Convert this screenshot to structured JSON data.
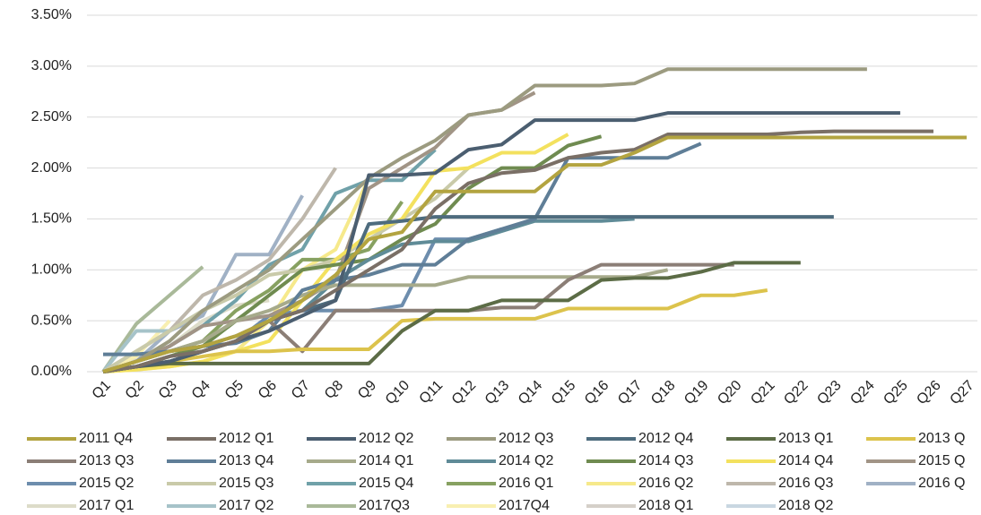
{
  "chart_data": {
    "type": "line",
    "categories": [
      "Q1",
      "Q2",
      "Q3",
      "Q4",
      "Q5",
      "Q6",
      "Q7",
      "Q8",
      "Q9",
      "Q10",
      "Q11",
      "Q12",
      "Q13",
      "Q14",
      "Q15",
      "Q16",
      "Q17",
      "Q18",
      "Q19",
      "Q20",
      "Q21",
      "Q22",
      "Q23",
      "Q24",
      "Q25",
      "Q26",
      "Q27"
    ],
    "ylim": [
      0,
      3.5
    ],
    "yticks": [
      {
        "value": 0,
        "label": "0.00%"
      },
      {
        "value": 0.5,
        "label": "0.50%"
      },
      {
        "value": 1,
        "label": "1.00%"
      },
      {
        "value": 1.5,
        "label": "1.50%"
      },
      {
        "value": 2,
        "label": "2.00%"
      },
      {
        "value": 2.5,
        "label": "2.50%"
      },
      {
        "value": 3,
        "label": "3.00%"
      },
      {
        "value": 3.5,
        "label": "3.50%"
      }
    ],
    "grid": true,
    "legend": "bottom",
    "series": [
      {
        "name": "2011 Q4",
        "color": "#b3a440",
        "values": [
          0,
          0.1,
          0.2,
          0.25,
          0.35,
          0.5,
          0.7,
          0.95,
          1.3,
          1.37,
          1.77,
          1.77,
          1.77,
          1.77,
          2.03,
          2.03,
          2.15,
          2.3,
          2.3,
          2.3,
          2.3,
          2.3,
          2.3,
          2.3,
          2.3,
          2.3,
          2.3
        ]
      },
      {
        "name": "2012 Q1",
        "color": "#7a6f66",
        "values": [
          0,
          0.05,
          0.15,
          0.2,
          0.3,
          0.5,
          0.6,
          0.8,
          1.0,
          1.2,
          1.6,
          1.85,
          1.95,
          1.98,
          2.1,
          2.15,
          2.18,
          2.33,
          2.33,
          2.33,
          2.33,
          2.35,
          2.36,
          2.36,
          2.36,
          2.36,
          null
        ]
      },
      {
        "name": "2012 Q2",
        "color": "#4b5e70",
        "values": [
          0,
          0.05,
          0.1,
          0.2,
          0.3,
          0.4,
          0.55,
          0.7,
          1.93,
          1.93,
          1.95,
          2.18,
          2.23,
          2.47,
          2.47,
          2.47,
          2.47,
          2.54,
          2.54,
          2.54,
          2.54,
          2.54,
          2.54,
          2.54,
          2.54,
          null,
          null
        ]
      },
      {
        "name": "2012 Q3",
        "color": "#9c9b80",
        "values": [
          0,
          0.1,
          0.3,
          0.6,
          0.8,
          1.0,
          1.3,
          1.6,
          1.9,
          2.1,
          2.27,
          2.52,
          2.57,
          2.81,
          2.81,
          2.81,
          2.83,
          2.97,
          2.97,
          2.97,
          2.97,
          2.97,
          2.97,
          2.97,
          null,
          null,
          null
        ]
      },
      {
        "name": "2012 Q4",
        "color": "#4e6c7e",
        "values": [
          0,
          0.05,
          0.1,
          0.2,
          0.3,
          0.5,
          0.6,
          0.7,
          1.45,
          1.48,
          1.52,
          1.52,
          1.52,
          1.52,
          1.52,
          1.52,
          1.52,
          1.52,
          1.52,
          1.52,
          1.52,
          1.52,
          1.52,
          null,
          null,
          null,
          null
        ]
      },
      {
        "name": "2013 Q1",
        "color": "#5c6c46",
        "values": [
          0,
          0.05,
          0.08,
          0.08,
          0.08,
          0.08,
          0.08,
          0.08,
          0.08,
          0.4,
          0.6,
          0.6,
          0.7,
          0.7,
          0.7,
          0.9,
          0.92,
          0.92,
          0.98,
          1.07,
          1.07,
          1.07,
          null,
          null,
          null,
          null,
          null
        ]
      },
      {
        "name": "2013 Q",
        "color": "#dcc34c",
        "values": [
          0,
          0.05,
          0.1,
          0.15,
          0.2,
          0.2,
          0.22,
          0.22,
          0.22,
          0.5,
          0.52,
          0.52,
          0.52,
          0.52,
          0.62,
          0.62,
          0.62,
          0.62,
          0.75,
          0.75,
          0.8,
          null,
          null,
          null,
          null,
          null,
          null
        ]
      },
      {
        "name": "2013 Q3",
        "color": "#8b7e76",
        "values": [
          0,
          0.1,
          0.2,
          0.25,
          0.35,
          0.5,
          0.2,
          0.6,
          0.6,
          0.6,
          0.6,
          0.6,
          0.63,
          0.63,
          0.9,
          1.05,
          1.05,
          1.05,
          1.05,
          1.05,
          null,
          null,
          null,
          null,
          null,
          null,
          null
        ]
      },
      {
        "name": "2013 Q4",
        "color": "#5f7e97",
        "values": [
          0.17,
          0.17,
          0.2,
          0.25,
          0.28,
          0.4,
          0.8,
          0.9,
          0.95,
          1.05,
          1.05,
          1.3,
          1.4,
          1.5,
          2.1,
          2.1,
          2.1,
          2.1,
          2.24,
          null,
          null,
          null,
          null,
          null,
          null,
          null,
          null
        ]
      },
      {
        "name": "2014 Q1",
        "color": "#a6aa8b",
        "values": [
          0,
          0.1,
          0.2,
          0.3,
          0.5,
          0.6,
          0.75,
          0.85,
          0.85,
          0.85,
          0.85,
          0.93,
          0.93,
          0.93,
          0.93,
          0.93,
          0.93,
          1.0,
          null,
          null,
          null,
          null,
          null,
          null,
          null,
          null,
          null
        ]
      },
      {
        "name": "2014 Q2",
        "color": "#5f8b97",
        "values": [
          0,
          0.05,
          0.1,
          0.2,
          0.3,
          0.5,
          0.6,
          0.9,
          1.1,
          1.25,
          1.28,
          1.28,
          1.38,
          1.48,
          1.48,
          1.48,
          1.5,
          null,
          null,
          null,
          null,
          null,
          null,
          null,
          null,
          null,
          null
        ]
      },
      {
        "name": "2014 Q3",
        "color": "#6f8b50",
        "values": [
          0,
          0.05,
          0.15,
          0.25,
          0.5,
          0.75,
          1.0,
          1.05,
          1.1,
          1.3,
          1.45,
          1.8,
          2.0,
          2.0,
          2.22,
          2.31,
          null,
          null,
          null,
          null,
          null,
          null,
          null,
          null,
          null,
          null,
          null
        ]
      },
      {
        "name": "2014 Q4",
        "color": "#f3e15e",
        "values": [
          0,
          0.02,
          0.05,
          0.1,
          0.2,
          0.3,
          0.7,
          1.1,
          1.35,
          1.5,
          1.97,
          2.0,
          2.15,
          2.15,
          2.33,
          null,
          null,
          null,
          null,
          null,
          null,
          null,
          null,
          null,
          null,
          null,
          null
        ]
      },
      {
        "name": "2015 Q",
        "color": "#a19486",
        "values": [
          0,
          0.1,
          0.25,
          0.45,
          0.5,
          0.55,
          0.7,
          0.9,
          1.8,
          2.0,
          2.2,
          2.52,
          2.57,
          2.74,
          null,
          null,
          null,
          null,
          null,
          null,
          null,
          null,
          null,
          null,
          null,
          null,
          null
        ]
      },
      {
        "name": "2015 Q2",
        "color": "#6d8dad",
        "values": [
          0,
          0.05,
          0.1,
          0.2,
          0.3,
          0.55,
          0.6,
          0.6,
          0.6,
          0.65,
          1.3,
          1.3,
          1.4,
          null,
          null,
          null,
          null,
          null,
          null,
          null,
          null,
          null,
          null,
          null,
          null,
          null,
          null
        ]
      },
      {
        "name": "2015 Q3",
        "color": "#c9caa9",
        "values": [
          0,
          0.2,
          0.4,
          0.6,
          0.75,
          0.95,
          1.0,
          1.1,
          1.3,
          1.5,
          1.7,
          2.0,
          null,
          null,
          null,
          null,
          null,
          null,
          null,
          null,
          null,
          null,
          null,
          null,
          null,
          null,
          null
        ]
      },
      {
        "name": "2015 Q4",
        "color": "#70a1a9",
        "values": [
          0,
          0.1,
          0.25,
          0.45,
          0.7,
          1.05,
          1.2,
          1.75,
          1.88,
          1.88,
          2.18,
          null,
          null,
          null,
          null,
          null,
          null,
          null,
          null,
          null,
          null,
          null,
          null,
          null,
          null,
          null,
          null
        ]
      },
      {
        "name": "2016 Q1",
        "color": "#87a161",
        "values": [
          0,
          0.1,
          0.2,
          0.3,
          0.6,
          0.8,
          1.1,
          1.1,
          1.2,
          1.67,
          null,
          null,
          null,
          null,
          null,
          null,
          null,
          null,
          null,
          null,
          null,
          null,
          null,
          null,
          null,
          null,
          null
        ]
      },
      {
        "name": "2016 Q2",
        "color": "#f6e98b",
        "values": [
          0,
          0.02,
          0.05,
          0.1,
          0.2,
          0.5,
          1.0,
          1.2,
          1.9,
          null,
          null,
          null,
          null,
          null,
          null,
          null,
          null,
          null,
          null,
          null,
          null,
          null,
          null,
          null,
          null,
          null,
          null
        ]
      },
      {
        "name": "2016 Q3",
        "color": "#beb7ab",
        "values": [
          0,
          0.2,
          0.4,
          0.75,
          0.9,
          1.1,
          1.5,
          2.0,
          null,
          null,
          null,
          null,
          null,
          null,
          null,
          null,
          null,
          null,
          null,
          null,
          null,
          null,
          null,
          null,
          null,
          null,
          null
        ]
      },
      {
        "name": "2016 Q",
        "color": "#a0b1c5",
        "values": [
          0,
          0.1,
          0.4,
          0.55,
          1.15,
          1.15,
          1.73,
          null,
          null,
          null,
          null,
          null,
          null,
          null,
          null,
          null,
          null,
          null,
          null,
          null,
          null,
          null,
          null,
          null,
          null,
          null,
          null
        ]
      },
      {
        "name": "2017 Q1",
        "color": "#dddcc9",
        "values": [
          0,
          0.1,
          0.25,
          0.5,
          0.65,
          0.7,
          null,
          null,
          null,
          null,
          null,
          null,
          null,
          null,
          null,
          null,
          null,
          null,
          null,
          null,
          null,
          null,
          null,
          null,
          null,
          null,
          null
        ]
      },
      {
        "name": "2017 Q2",
        "color": "#a6c3c9",
        "values": [
          0,
          0.4,
          0.4,
          0.6,
          0.75,
          null,
          null,
          null,
          null,
          null,
          null,
          null,
          null,
          null,
          null,
          null,
          null,
          null,
          null,
          null,
          null,
          null,
          null,
          null,
          null,
          null,
          null
        ]
      },
      {
        "name": "2017Q3",
        "color": "#a9b999",
        "values": [
          0,
          0.47,
          0.75,
          1.03,
          null,
          null,
          null,
          null,
          null,
          null,
          null,
          null,
          null,
          null,
          null,
          null,
          null,
          null,
          null,
          null,
          null,
          null,
          null,
          null,
          null,
          null,
          null
        ]
      },
      {
        "name": "2017Q4",
        "color": "#f8efb1",
        "values": [
          0,
          0.15,
          0.5,
          null,
          null,
          null,
          null,
          null,
          null,
          null,
          null,
          null,
          null,
          null,
          null,
          null,
          null,
          null,
          null,
          null,
          null,
          null,
          null,
          null,
          null,
          null,
          null
        ]
      },
      {
        "name": "2018 Q1",
        "color": "#d5d0c9",
        "values": [
          0,
          0.12,
          null,
          null,
          null,
          null,
          null,
          null,
          null,
          null,
          null,
          null,
          null,
          null,
          null,
          null,
          null,
          null,
          null,
          null,
          null,
          null,
          null,
          null,
          null,
          null,
          null
        ]
      },
      {
        "name": "2018 Q2",
        "color": "#c9d7e1",
        "values": [
          0,
          null,
          null,
          null,
          null,
          null,
          null,
          null,
          null,
          null,
          null,
          null,
          null,
          null,
          null,
          null,
          null,
          null,
          null,
          null,
          null,
          null,
          null,
          null,
          null,
          null,
          null
        ]
      }
    ]
  }
}
